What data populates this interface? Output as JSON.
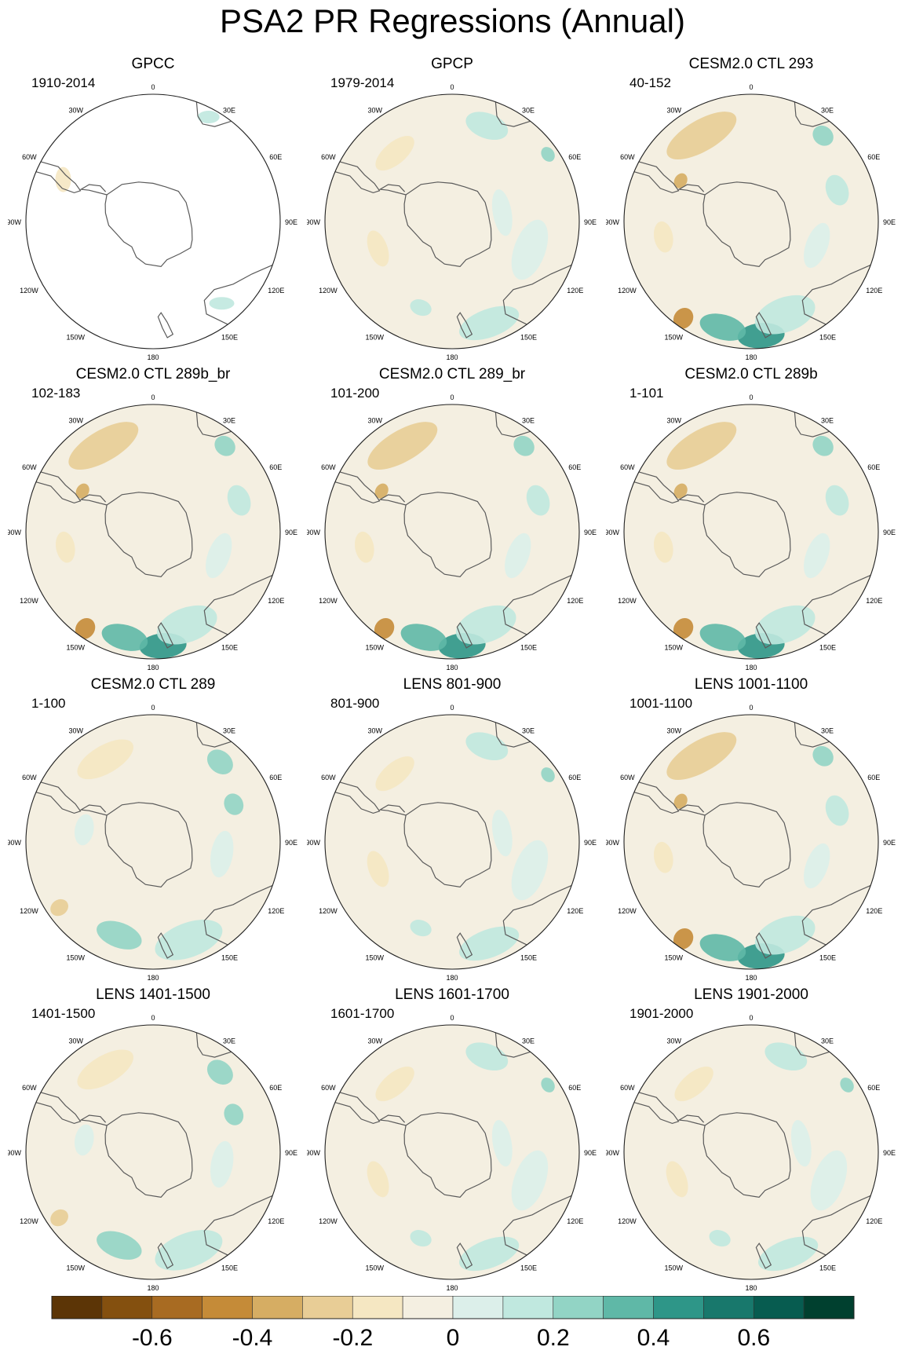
{
  "title": "PSA2 PR Regressions (Annual)",
  "colors": {
    "ocean_base": "#f4efe1",
    "coast": "#5a5a5a",
    "border": "#222222"
  },
  "lon_labels": [
    "0",
    "30E",
    "60E",
    "90E",
    "120E",
    "150E",
    "180",
    "150W",
    "120W",
    "90W",
    "60W",
    "30W"
  ],
  "panels": [
    {
      "title": "GPCC",
      "period": "1910-2014",
      "fill": "none"
    },
    {
      "title": "GPCP",
      "period": "1979-2014",
      "fill": "weak"
    },
    {
      "title": "CESM2.0 CTL 293",
      "period": "40-152",
      "fill": "strong"
    },
    {
      "title": "CESM2.0 CTL 289b_br",
      "period": "102-183",
      "fill": "strong"
    },
    {
      "title": "CESM2.0 CTL 289_br",
      "period": "101-200",
      "fill": "strong"
    },
    {
      "title": "CESM2.0 CTL 289b",
      "period": "1-101",
      "fill": "strong"
    },
    {
      "title": "CESM2.0 CTL 289",
      "period": "1-100",
      "fill": "moderate"
    },
    {
      "title": "LENS 801-900",
      "period": "801-900",
      "fill": "weak"
    },
    {
      "title": "LENS 1001-1100",
      "period": "1001-1100",
      "fill": "strong"
    },
    {
      "title": "LENS 1401-1500",
      "period": "1401-1500",
      "fill": "moderate"
    },
    {
      "title": "LENS 1601-1700",
      "period": "1601-1700",
      "fill": "weak"
    },
    {
      "title": "LENS 1901-2000",
      "period": "1901-2000",
      "fill": "weak"
    }
  ],
  "colorbar": {
    "colors": [
      "#5c3506",
      "#84500f",
      "#a86b22",
      "#c58b38",
      "#d6ad63",
      "#e8cd96",
      "#f5e7c2",
      "#f4efe1",
      "#dcefea",
      "#c0e8df",
      "#92d4c5",
      "#5fb8a7",
      "#2e9688",
      "#18786c",
      "#075c50",
      "#00402f"
    ],
    "tick_labels": [
      "-0.6",
      "-0.4",
      "-0.2",
      "0",
      "0.2",
      "0.4",
      "0.6"
    ]
  }
}
